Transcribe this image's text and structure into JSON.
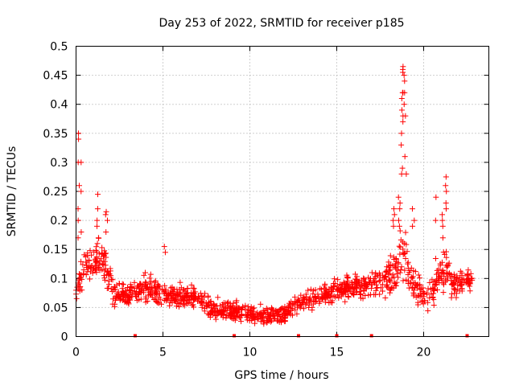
{
  "chart_data": {
    "type": "scatter",
    "title": "Day 253 of 2022, SRMTID for receiver p185",
    "xlabel": "GPS time / hours",
    "ylabel": "SRMTID / TECUs",
    "xlim": [
      0,
      23.75
    ],
    "ylim": [
      0,
      0.5
    ],
    "xticks": [
      0,
      5,
      10,
      15,
      20
    ],
    "xtick_labels": [
      "0",
      "5",
      "10",
      "15",
      "20"
    ],
    "yticks": [
      0,
      0.05,
      0.1,
      0.15,
      0.2,
      0.25,
      0.3,
      0.35,
      0.4,
      0.45,
      0.5
    ],
    "ytick_labels": [
      "0",
      "0.05",
      "0.1",
      "0.15",
      "0.2",
      "0.25",
      "0.3",
      "0.35",
      "0.4",
      "0.45",
      "0.5"
    ],
    "grid": true,
    "marker": "plus",
    "color": "#ff0000",
    "series_name": "SRMTID",
    "baseline_markers_x": [
      3.4,
      9.1,
      12.8,
      15.0,
      17.0,
      22.5
    ],
    "profile": {
      "x": [
        0,
        0.3,
        0.5,
        1.0,
        1.3,
        1.8,
        2.3,
        3.0,
        3.5,
        4.0,
        5.0,
        6.0,
        7.0,
        8.0,
        9.0,
        10.0,
        11.0,
        12.0,
        13.0,
        14.0,
        15.0,
        16.0,
        17.0,
        18.0,
        18.5,
        18.9,
        19.4,
        20.0,
        20.5,
        21.2,
        21.8,
        22.8
      ],
      "center": [
        0.08,
        0.11,
        0.12,
        0.13,
        0.14,
        0.11,
        0.07,
        0.07,
        0.08,
        0.085,
        0.07,
        0.07,
        0.065,
        0.045,
        0.045,
        0.04,
        0.035,
        0.04,
        0.06,
        0.07,
        0.08,
        0.085,
        0.09,
        0.1,
        0.12,
        0.14,
        0.09,
        0.07,
        0.08,
        0.12,
        0.09,
        0.1
      ],
      "spread": [
        0.02,
        0.05,
        0.04,
        0.04,
        0.05,
        0.04,
        0.03,
        0.025,
        0.03,
        0.03,
        0.025,
        0.025,
        0.02,
        0.02,
        0.02,
        0.02,
        0.02,
        0.02,
        0.02,
        0.02,
        0.025,
        0.025,
        0.03,
        0.04,
        0.05,
        0.06,
        0.03,
        0.03,
        0.04,
        0.05,
        0.03,
        0.02
      ]
    },
    "spikes": [
      {
        "x": 0.15,
        "values": [
          0.35,
          0.34,
          0.3,
          0.26,
          0.22,
          0.2,
          0.17
        ]
      },
      {
        "x": 0.3,
        "values": [
          0.3,
          0.25,
          0.18
        ]
      },
      {
        "x": 1.25,
        "values": [
          0.245,
          0.22,
          0.2,
          0.19,
          0.17
        ]
      },
      {
        "x": 1.75,
        "values": [
          0.215,
          0.21,
          0.2,
          0.18
        ]
      },
      {
        "x": 5.1,
        "values": [
          0.155,
          0.145
        ]
      },
      {
        "x": 18.3,
        "values": [
          0.22,
          0.21,
          0.2,
          0.19
        ]
      },
      {
        "x": 18.6,
        "values": [
          0.24,
          0.23,
          0.22,
          0.2,
          0.19
        ]
      },
      {
        "x": 18.75,
        "values": [
          0.42,
          0.41,
          0.39,
          0.37,
          0.35,
          0.33,
          0.29,
          0.28
        ]
      },
      {
        "x": 18.85,
        "values": [
          0.465,
          0.46,
          0.455,
          0.45,
          0.44,
          0.42,
          0.4,
          0.38
        ]
      },
      {
        "x": 18.95,
        "values": [
          0.42,
          0.38,
          0.31,
          0.28
        ]
      },
      {
        "x": 19.4,
        "values": [
          0.22,
          0.2,
          0.19
        ]
      },
      {
        "x": 20.7,
        "values": [
          0.24,
          0.2
        ]
      },
      {
        "x": 21.3,
        "values": [
          0.275,
          0.26,
          0.25,
          0.23,
          0.22
        ]
      },
      {
        "x": 21.1,
        "values": [
          0.21,
          0.2,
          0.19,
          0.17
        ]
      }
    ]
  }
}
